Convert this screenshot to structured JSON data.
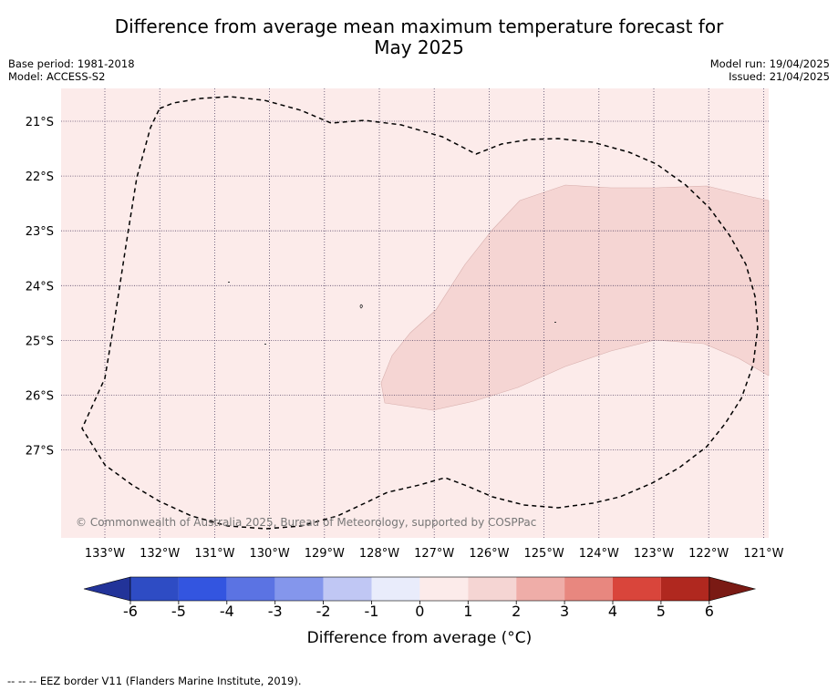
{
  "title": {
    "line1": "Difference from average mean maximum temperature forecast for",
    "line2": "May 2025"
  },
  "meta": {
    "base_period": "Base period: 1981-2018",
    "model": "Model: ACCESS-S2",
    "model_run": "Model run: 19/04/2025",
    "issued": "Issued: 21/04/2025"
  },
  "map": {
    "latitude_labels": [
      "21°S",
      "22°S",
      "23°S",
      "24°S",
      "25°S",
      "26°S",
      "27°S"
    ],
    "longitude_labels": [
      "133°W",
      "132°W",
      "131°W",
      "130°W",
      "129°W",
      "128°W",
      "127°W",
      "126°W",
      "125°W",
      "124°W",
      "123°W",
      "122°W",
      "121°W"
    ],
    "background_class": "0 to 1",
    "region_class": "1 to 2",
    "copyright": "© Commonwealth of Australia 2025, Bureau of Meteorology, supported by COSPPac"
  },
  "colorbar": {
    "ticks": [
      "-6",
      "-5",
      "-4",
      "-3",
      "-2",
      "-1",
      "0",
      "1",
      "2",
      "3",
      "4",
      "5",
      "6"
    ],
    "label": "Difference from average (°C)",
    "colors": [
      "#223399",
      "#2e4cc4",
      "#3355e0",
      "#5b73e3",
      "#8496ec",
      "#c0c7f4",
      "#e9ecfb",
      "#fcebea",
      "#f5d5d3",
      "#efada8",
      "#e8877f",
      "#d9453b",
      "#b0281f",
      "#7a1a14"
    ]
  },
  "footnote": "--  --  -- EEZ border V11 (Flanders Marine Institute, 2019)."
}
